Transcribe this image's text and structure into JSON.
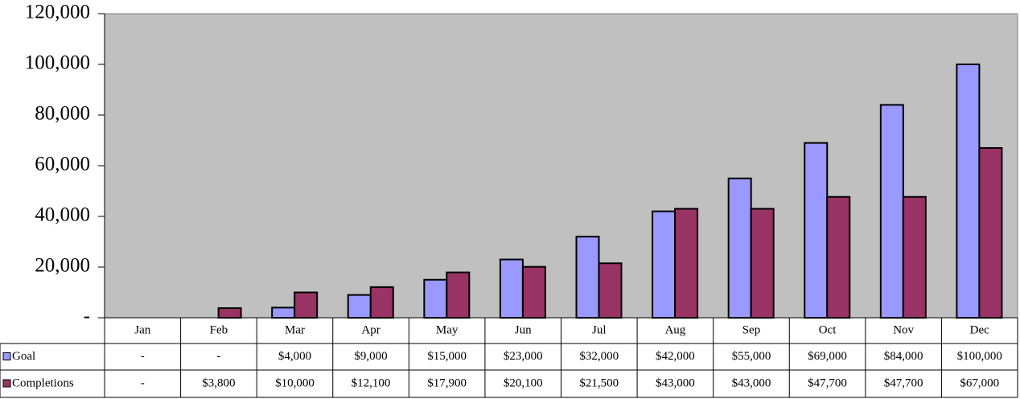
{
  "chart_data": {
    "type": "bar",
    "categories": [
      "Jan",
      "Feb",
      "Mar",
      "Apr",
      "May",
      "Jun",
      "Jul",
      "Aug",
      "Sep",
      "Oct",
      "Nov",
      "Dec"
    ],
    "series": [
      {
        "name": "Goal",
        "color": "#9999ff",
        "values": [
          0,
          0,
          4000,
          9000,
          15000,
          23000,
          32000,
          42000,
          55000,
          69000,
          84000,
          100000
        ],
        "value_labels": [
          "-",
          "-",
          "$4,000",
          "$9,000",
          "$15,000",
          "$23,000",
          "$32,000",
          "$42,000",
          "$55,000",
          "$69,000",
          "$84,000",
          "$100,000"
        ]
      },
      {
        "name": "Completions",
        "color": "#993366",
        "values": [
          0,
          3800,
          10000,
          12100,
          17900,
          20100,
          21500,
          43000,
          43000,
          47700,
          47700,
          67000
        ],
        "value_labels": [
          "-",
          "$3,800",
          "$10,000",
          "$12,100",
          "$17,900",
          "$20,100",
          "$21,500",
          "$43,000",
          "$43,000",
          "$47,700",
          "$47,700",
          "$67,000"
        ]
      }
    ],
    "ylim": [
      0,
      120000
    ],
    "yticks": [
      {
        "value": 0,
        "label": "-"
      },
      {
        "value": 20000,
        "label": "20,000"
      },
      {
        "value": 40000,
        "label": "40,000"
      },
      {
        "value": 60000,
        "label": "60,000"
      },
      {
        "value": 80000,
        "label": "80,000"
      },
      {
        "value": 100000,
        "label": "100,000"
      },
      {
        "value": 120000,
        "label": "120,000"
      }
    ],
    "grid": false
  }
}
